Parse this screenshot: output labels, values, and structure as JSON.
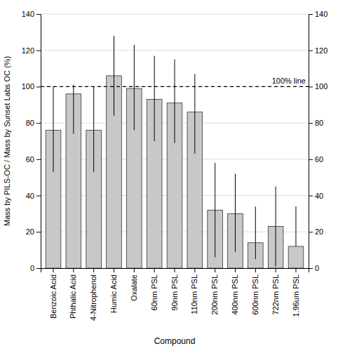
{
  "chart_data": {
    "type": "bar",
    "categories": [
      "Benzoic Acid",
      "Phthalic Acid",
      "4-Nitrophenol",
      "Humic Acid",
      "Oxalate",
      "60nm PSL",
      "90nm PSL",
      "110nm PSL",
      "200nm PSL",
      "400nm PSL",
      "600nm PSL",
      "722nm PSL",
      "1.96um PSL"
    ],
    "values": [
      76,
      96,
      76,
      106,
      99,
      93,
      91,
      86,
      32,
      30,
      14,
      23,
      12
    ],
    "errors_upper": [
      24,
      5,
      24,
      22,
      24,
      24,
      24,
      21,
      26,
      22,
      20,
      22,
      22
    ],
    "errors_lower": [
      23,
      22,
      23,
      22,
      23,
      23,
      22,
      23,
      26,
      21,
      9,
      22,
      0
    ],
    "color": "#c8c8c8",
    "xlabel": "Compound",
    "ylabel": "Mass by PILS-OC / Mass by Sunset Labs OC (%)",
    "ylim": [
      0,
      140
    ],
    "yticks": [
      0,
      20,
      40,
      60,
      80,
      100,
      120,
      140
    ],
    "y2lim": [
      0,
      140
    ],
    "y2ticks": [
      0,
      20,
      40,
      60,
      80,
      100,
      120,
      140
    ],
    "grid": true,
    "annotations": [
      {
        "y": 100,
        "text": "100% line"
      }
    ]
  }
}
